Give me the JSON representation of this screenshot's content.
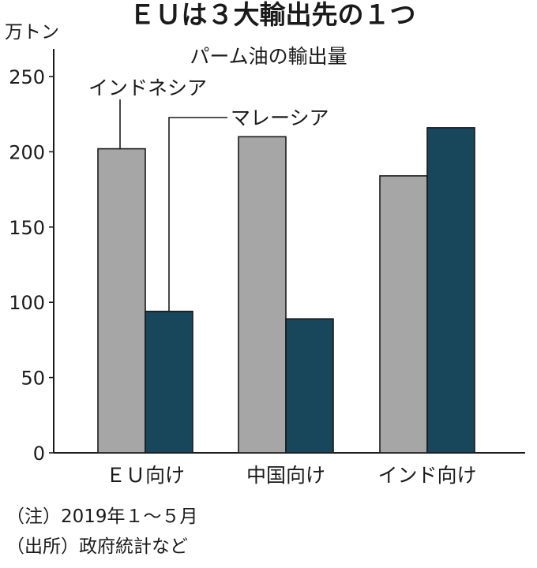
{
  "chart_data": {
    "type": "bar",
    "title": "ＥＵは３大輸出先の１つ",
    "subtitle": "パーム油の輸出量",
    "unit_label": "万トン",
    "categories": [
      "ＥＵ向け",
      "中国向け",
      "インド向け"
    ],
    "series": [
      {
        "name": "インドネシア",
        "values": [
          202,
          210,
          184
        ],
        "color": "#a6a6a6"
      },
      {
        "name": "マレーシア",
        "values": [
          94,
          89,
          216
        ],
        "color": "#18465a"
      }
    ],
    "ylim": [
      0,
      250
    ],
    "yticks": [
      "0",
      "50",
      "100",
      "150",
      "200",
      "250"
    ],
    "grid": false,
    "legend": "callout labels pointing to the first category bars",
    "notes": [
      "（注）2019年１～５月",
      "（出所）政府統計など"
    ]
  }
}
